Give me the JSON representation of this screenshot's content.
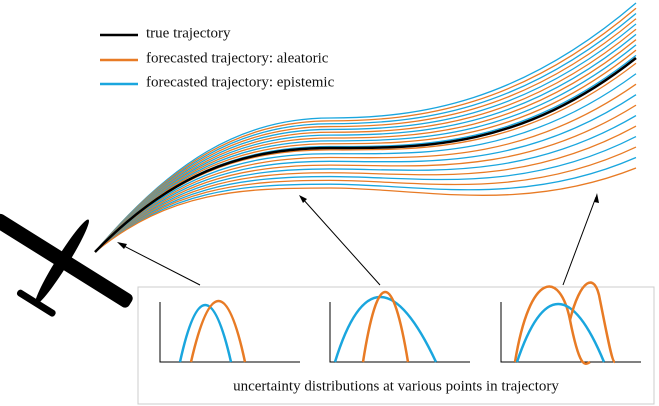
{
  "legend": {
    "items": [
      {
        "label": "true trajectory"
      },
      {
        "label": "forecasted trajectory: aleatoric"
      },
      {
        "label": "forecasted trajectory: epistemic"
      }
    ]
  },
  "inset": {
    "caption": "uncertainty distributions at various points in trajectory"
  }
}
